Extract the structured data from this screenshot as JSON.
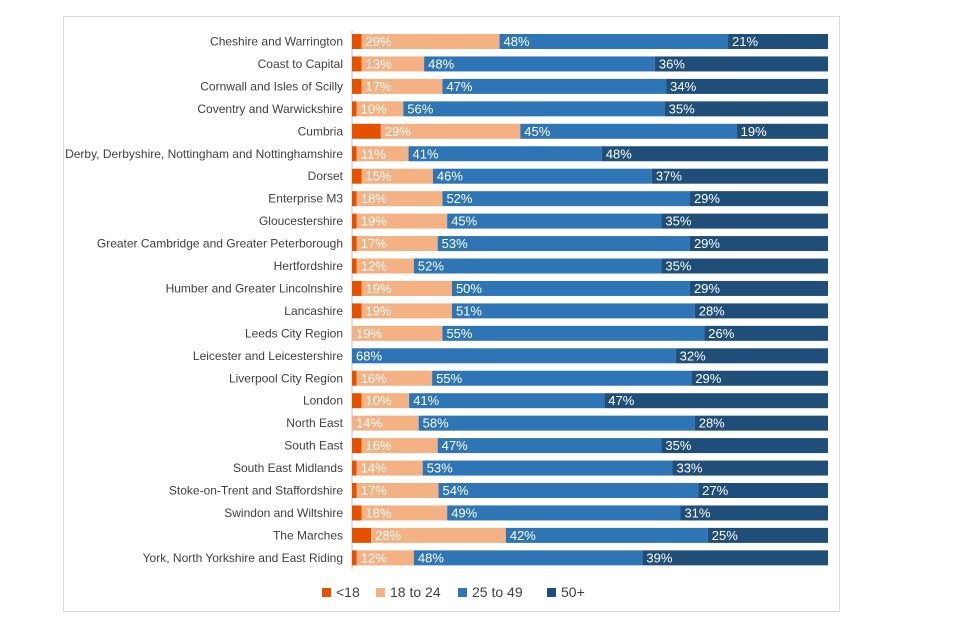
{
  "chart_data": {
    "type": "bar",
    "orientation": "horizontal",
    "stacked": "percent",
    "categories": [
      "Cheshire and Warrington",
      "Coast to Capital",
      "Cornwall and Isles of Scilly",
      "Coventry and Warwickshire",
      "Cumbria",
      "Derby, Derbyshire, Nottingham and Nottinghamshire",
      "Dorset",
      "Enterprise M3",
      "Gloucestershire",
      "Greater Cambridge and Greater Peterborough",
      "Hertfordshire",
      "Humber and Greater Lincolnshire",
      "Lancashire",
      "Leeds City Region",
      "Leicester and Leicestershire",
      "Liverpool City Region",
      "London",
      "North East",
      "South East",
      "South East Midlands",
      "Stoke-on-Trent and Staffordshire",
      "Swindon and Wiltshire",
      "The Marches",
      "York, North Yorkshire and East Riding"
    ],
    "series": [
      {
        "name": "<18",
        "color": "#e65100",
        "values": [
          2,
          2,
          2,
          1,
          6,
          1,
          2,
          1,
          1,
          1,
          1,
          2,
          2,
          0,
          0,
          1,
          2,
          0,
          2,
          1,
          1,
          2,
          4,
          1
        ]
      },
      {
        "name": "18 to 24",
        "color": "#f4b183",
        "values": [
          29,
          13,
          17,
          10,
          29,
          11,
          15,
          18,
          19,
          17,
          12,
          19,
          19,
          19,
          0,
          16,
          10,
          14,
          16,
          14,
          17,
          18,
          28,
          12
        ]
      },
      {
        "name": "25 to 49",
        "color": "#2e75b6",
        "values": [
          48,
          48,
          47,
          56,
          45,
          41,
          46,
          52,
          45,
          53,
          52,
          50,
          51,
          55,
          68,
          55,
          41,
          58,
          47,
          53,
          54,
          49,
          42,
          48
        ]
      },
      {
        "name": "50+",
        "color": "#1f4e79",
        "values": [
          21,
          36,
          34,
          35,
          19,
          48,
          37,
          29,
          35,
          29,
          35,
          29,
          28,
          26,
          32,
          29,
          47,
          28,
          35,
          33,
          27,
          31,
          25,
          39
        ]
      }
    ],
    "data_labels": [
      [
        null,
        "29%",
        "48%",
        "21%"
      ],
      [
        null,
        "13%",
        "48%",
        "36%"
      ],
      [
        null,
        "17%",
        "47%",
        "34%"
      ],
      [
        null,
        "10%",
        "56%",
        "35%"
      ],
      [
        null,
        "29%",
        "45%",
        "19%"
      ],
      [
        null,
        "11%",
        "41%",
        "48%"
      ],
      [
        null,
        "15%",
        "46%",
        "37%"
      ],
      [
        null,
        "18%",
        "52%",
        "29%"
      ],
      [
        null,
        "19%",
        "45%",
        "35%"
      ],
      [
        null,
        "17%",
        "53%",
        "29%"
      ],
      [
        null,
        "12%",
        "52%",
        "35%"
      ],
      [
        null,
        "19%",
        "50%",
        "29%"
      ],
      [
        null,
        "19%",
        "51%",
        "28%"
      ],
      [
        null,
        "19%",
        "55%",
        "26%"
      ],
      [
        null,
        null,
        "68%",
        "32%"
      ],
      [
        null,
        "16%",
        "55%",
        "29%"
      ],
      [
        null,
        "10%",
        "41%",
        "47%"
      ],
      [
        null,
        "14%",
        "58%",
        "28%"
      ],
      [
        null,
        "16%",
        "47%",
        "35%"
      ],
      [
        null,
        "14%",
        "53%",
        "33%"
      ],
      [
        null,
        "17%",
        "54%",
        "27%"
      ],
      [
        null,
        "18%",
        "49%",
        "31%"
      ],
      [
        null,
        "28%",
        "42%",
        "25%"
      ],
      [
        null,
        "12%",
        "48%",
        "39%"
      ]
    ],
    "title": "",
    "xlabel": "",
    "ylabel": "",
    "xlim": [
      0,
      100
    ],
    "grid": false,
    "legend": "bottom"
  }
}
